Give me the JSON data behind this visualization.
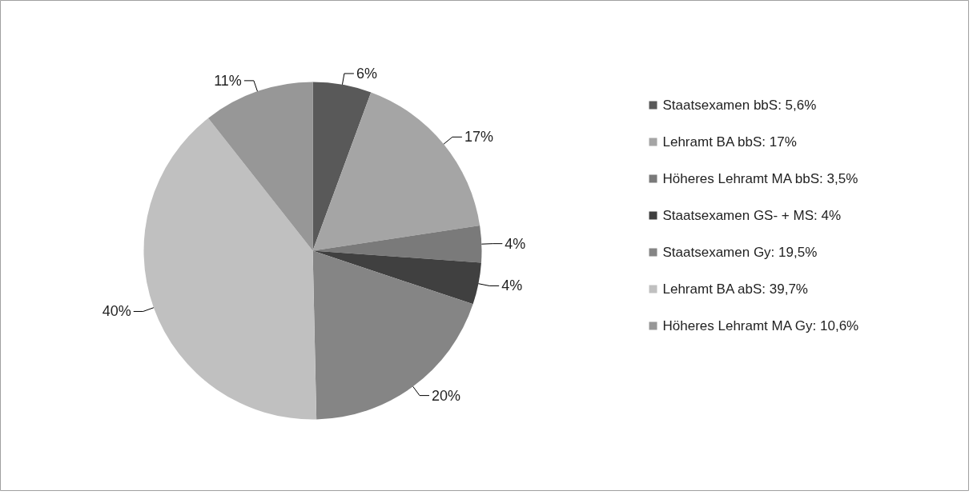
{
  "chart_data": {
    "type": "pie",
    "categories": [
      "Staatsexamen bbS: 5,6%",
      "Lehramt BA bbS: 17%",
      "Höheres Lehramt MA bbS: 3,5%",
      "Staatsexamen GS- + MS: 4%",
      "Staatsexamen Gy: 19,5%",
      "Lehramt BA abS: 39,7%",
      "Höheres Lehramt MA Gy: 10,6%"
    ],
    "values": [
      5.6,
      17,
      3.5,
      4,
      19.5,
      39.7,
      10.6
    ],
    "colors": [
      "#595959",
      "#a5a5a5",
      "#7a7a7a",
      "#404040",
      "#858585",
      "#c0c0c0",
      "#979797"
    ],
    "value_labels": [
      "6%",
      "17%",
      "4%",
      "4%",
      "20%",
      "40%",
      "11%"
    ],
    "legend": "right"
  }
}
